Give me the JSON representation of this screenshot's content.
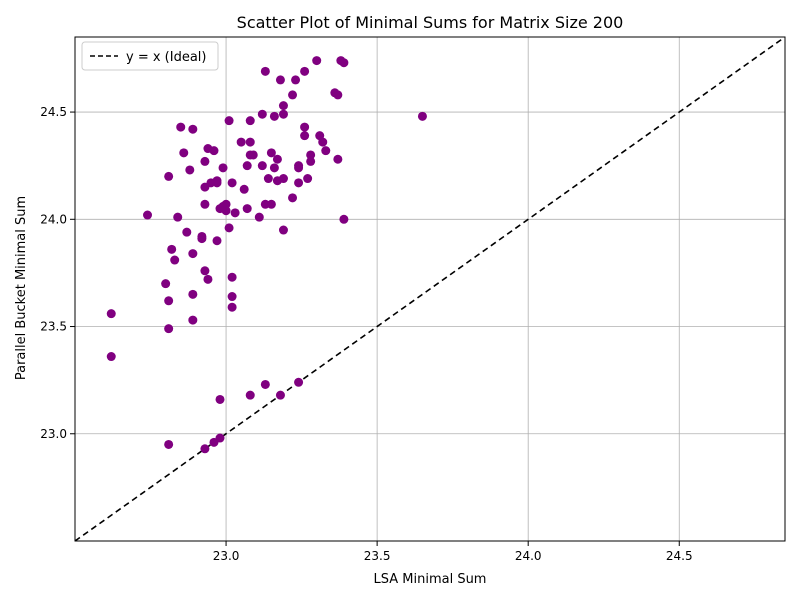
{
  "chart_data": {
    "type": "scatter",
    "title": "Scatter Plot of Minimal Sums for Matrix Size 200",
    "xlabel": "LSA Minimal Sum",
    "ylabel": "Parallel Bucket Minimal Sum",
    "xlim": [
      22.5,
      24.85
    ],
    "ylim": [
      22.5,
      24.85
    ],
    "xticks": [
      23.0,
      23.5,
      24.0,
      24.5
    ],
    "yticks": [
      23.0,
      23.5,
      24.0,
      24.5
    ],
    "xtick_labels": [
      "23.0",
      "23.5",
      "24.0",
      "24.5"
    ],
    "ytick_labels": [
      "23.0",
      "23.5",
      "24.0",
      "24.5"
    ],
    "grid": true,
    "legend_position": "top-left",
    "colors": {
      "points": "#800080",
      "ideal_line": "#000000",
      "grid": "#b0b0b0"
    },
    "ideal_line": {
      "label": "y = x (Ideal)",
      "style": "dashed"
    },
    "series": [
      {
        "points": [
          [
            22.62,
            23.56
          ],
          [
            22.62,
            23.36
          ],
          [
            22.74,
            24.02
          ],
          [
            22.8,
            23.7
          ],
          [
            22.81,
            23.62
          ],
          [
            22.81,
            23.49
          ],
          [
            22.81,
            22.95
          ],
          [
            22.81,
            24.2
          ],
          [
            22.82,
            23.86
          ],
          [
            22.83,
            23.81
          ],
          [
            22.84,
            24.01
          ],
          [
            22.85,
            24.43
          ],
          [
            22.86,
            24.31
          ],
          [
            22.87,
            23.94
          ],
          [
            22.88,
            24.23
          ],
          [
            22.89,
            23.84
          ],
          [
            22.89,
            23.65
          ],
          [
            22.89,
            23.53
          ],
          [
            22.89,
            24.42
          ],
          [
            22.92,
            23.92
          ],
          [
            22.92,
            23.91
          ],
          [
            22.93,
            24.15
          ],
          [
            22.93,
            23.76
          ],
          [
            22.93,
            24.27
          ],
          [
            22.93,
            24.07
          ],
          [
            22.93,
            22.93
          ],
          [
            22.94,
            24.33
          ],
          [
            22.94,
            23.72
          ],
          [
            22.95,
            24.17
          ],
          [
            22.96,
            24.32
          ],
          [
            22.96,
            22.96
          ],
          [
            22.97,
            24.18
          ],
          [
            22.97,
            24.17
          ],
          [
            22.97,
            23.9
          ],
          [
            22.98,
            24.05
          ],
          [
            22.98,
            23.16
          ],
          [
            22.98,
            22.98
          ],
          [
            22.99,
            24.06
          ],
          [
            22.99,
            24.24
          ],
          [
            23.0,
            24.07
          ],
          [
            23.0,
            24.04
          ],
          [
            23.01,
            24.46
          ],
          [
            23.01,
            23.96
          ],
          [
            23.02,
            23.73
          ],
          [
            23.02,
            23.64
          ],
          [
            23.02,
            23.59
          ],
          [
            23.02,
            24.17
          ],
          [
            23.03,
            24.03
          ],
          [
            23.05,
            24.36
          ],
          [
            23.06,
            24.14
          ],
          [
            23.07,
            24.25
          ],
          [
            23.07,
            24.05
          ],
          [
            23.08,
            24.3
          ],
          [
            23.08,
            24.36
          ],
          [
            23.08,
            24.46
          ],
          [
            23.08,
            23.18
          ],
          [
            23.09,
            24.3
          ],
          [
            23.11,
            24.01
          ],
          [
            23.12,
            24.25
          ],
          [
            23.12,
            24.49
          ],
          [
            23.13,
            23.23
          ],
          [
            23.13,
            24.07
          ],
          [
            23.13,
            24.69
          ],
          [
            23.14,
            24.19
          ],
          [
            23.15,
            24.07
          ],
          [
            23.15,
            24.31
          ],
          [
            23.16,
            24.48
          ],
          [
            23.16,
            24.24
          ],
          [
            23.17,
            24.28
          ],
          [
            23.17,
            24.18
          ],
          [
            23.18,
            24.65
          ],
          [
            23.18,
            23.18
          ],
          [
            23.19,
            24.49
          ],
          [
            23.19,
            24.53
          ],
          [
            23.19,
            23.95
          ],
          [
            23.19,
            24.19
          ],
          [
            23.22,
            24.1
          ],
          [
            23.22,
            24.58
          ],
          [
            23.23,
            24.65
          ],
          [
            23.24,
            24.25
          ],
          [
            23.24,
            24.24
          ],
          [
            23.24,
            24.17
          ],
          [
            23.24,
            23.24
          ],
          [
            23.26,
            24.69
          ],
          [
            23.26,
            24.39
          ],
          [
            23.26,
            24.43
          ],
          [
            23.27,
            24.19
          ],
          [
            23.28,
            24.3
          ],
          [
            23.28,
            24.27
          ],
          [
            23.3,
            24.74
          ],
          [
            23.31,
            24.39
          ],
          [
            23.32,
            24.36
          ],
          [
            23.33,
            24.32
          ],
          [
            23.36,
            24.59
          ],
          [
            23.37,
            24.58
          ],
          [
            23.37,
            24.28
          ],
          [
            23.38,
            24.74
          ],
          [
            23.39,
            24.73
          ],
          [
            23.39,
            24.0
          ],
          [
            23.65,
            24.48
          ]
        ]
      }
    ]
  }
}
